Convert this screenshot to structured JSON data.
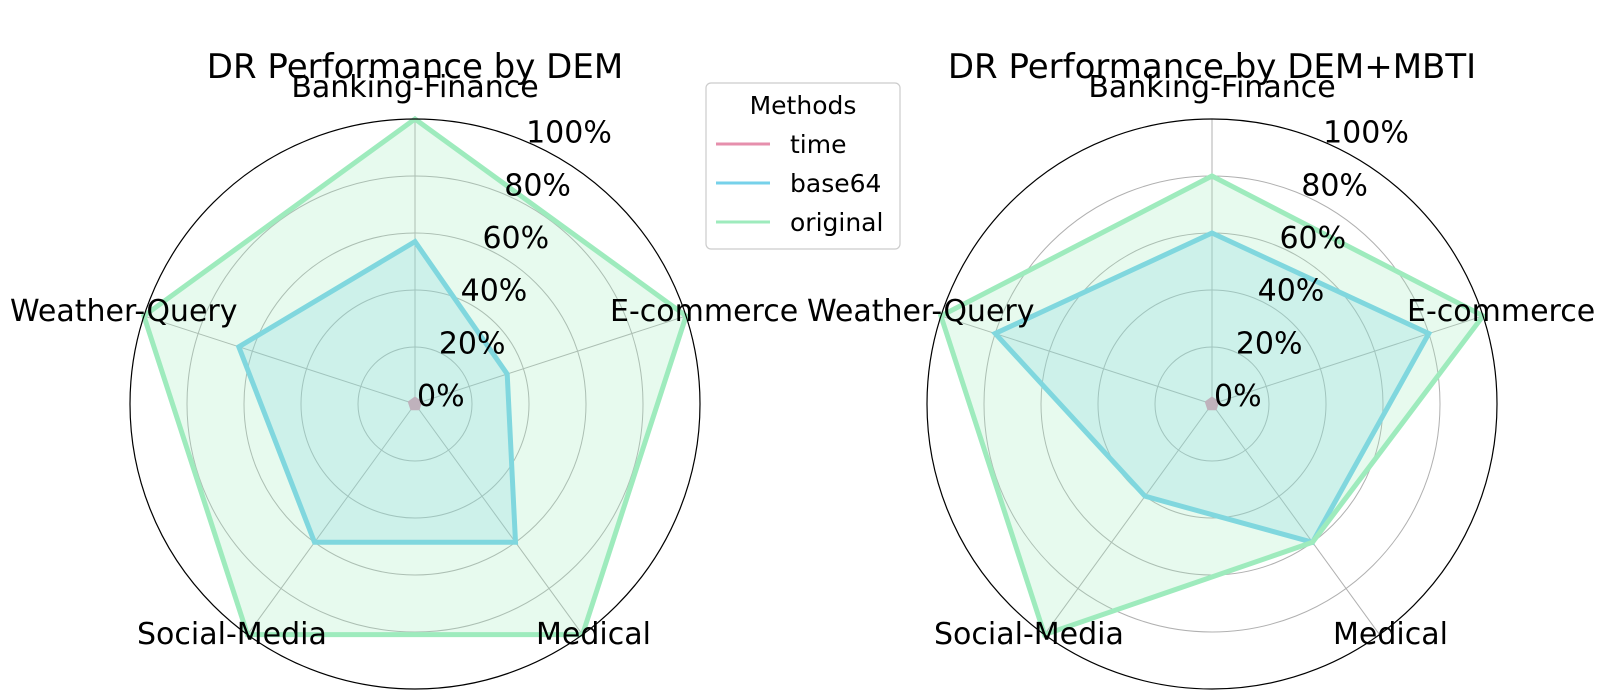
{
  "chart_data": [
    {
      "type": "radar",
      "title": "DR Performance by DEM",
      "categories": [
        "Banking-Finance",
        "E-commerce",
        "Medical",
        "Social-Media",
        "Weather-Query"
      ],
      "r_range": [
        0,
        100
      ],
      "r_ticks": [
        "0%",
        "20%",
        "40%",
        "60%",
        "80%",
        "100%"
      ],
      "grid": true,
      "series": [
        {
          "name": "time",
          "color": "#e68fac",
          "values": [
            0,
            0,
            0,
            0,
            0
          ]
        },
        {
          "name": "base64",
          "color": "#76d1ea",
          "values": [
            57,
            34,
            60,
            60,
            65
          ]
        },
        {
          "name": "original",
          "color": "#9eebbd",
          "values": [
            100,
            100,
            100,
            100,
            100
          ]
        }
      ]
    },
    {
      "type": "radar",
      "title": "DR Performance by DEM+MBTI",
      "categories": [
        "Banking-Finance",
        "E-commerce",
        "Medical",
        "Social-Media",
        "Weather-Query"
      ],
      "r_range": [
        0,
        100
      ],
      "r_ticks": [
        "0%",
        "20%",
        "40%",
        "60%",
        "80%",
        "100%"
      ],
      "grid": true,
      "series": [
        {
          "name": "time",
          "color": "#e68fac",
          "values": [
            0,
            0,
            0,
            0,
            0
          ]
        },
        {
          "name": "base64",
          "color": "#76d1ea",
          "values": [
            60,
            80,
            60,
            40,
            80
          ]
        },
        {
          "name": "original",
          "color": "#9eebbd",
          "values": [
            80,
            100,
            60,
            100,
            100
          ]
        }
      ]
    }
  ],
  "legend": {
    "title": "Methods",
    "placement": "between charts, upper",
    "entries": [
      {
        "label": "time",
        "color": "#e68fac"
      },
      {
        "label": "base64",
        "color": "#76d1ea"
      },
      {
        "label": "original",
        "color": "#9eebbd"
      }
    ]
  }
}
